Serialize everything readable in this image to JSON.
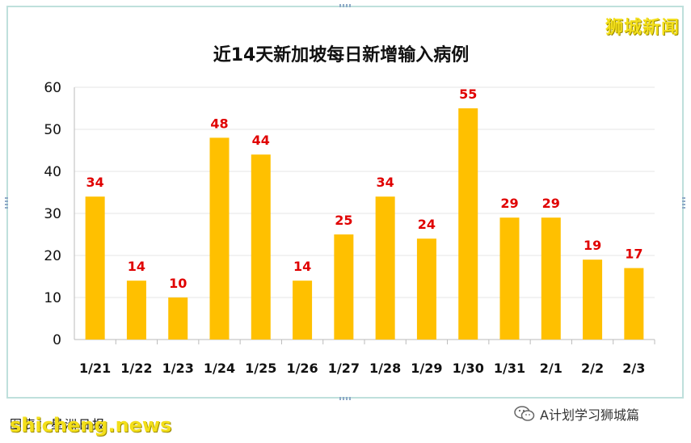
{
  "watermark_top": "狮城新闻",
  "watermark_bottom": "shicheng.news",
  "source_label": "图表：星洲日报",
  "wechat_label": "A计划学习狮城篇",
  "chart_data": {
    "type": "bar",
    "title": "近14天新加坡每日新增输入病例",
    "categories": [
      "1/21",
      "1/22",
      "1/23",
      "1/24",
      "1/25",
      "1/26",
      "1/27",
      "1/28",
      "1/29",
      "1/30",
      "1/31",
      "2/1",
      "2/2",
      "2/3"
    ],
    "values": [
      34,
      14,
      10,
      48,
      44,
      14,
      25,
      34,
      24,
      55,
      29,
      29,
      19,
      17
    ],
    "ylim": [
      0,
      60
    ],
    "yticks": [
      0,
      10,
      20,
      30,
      40,
      50,
      60
    ],
    "bar_color": "#ffc000",
    "label_color": "#e00000",
    "grid": true
  }
}
